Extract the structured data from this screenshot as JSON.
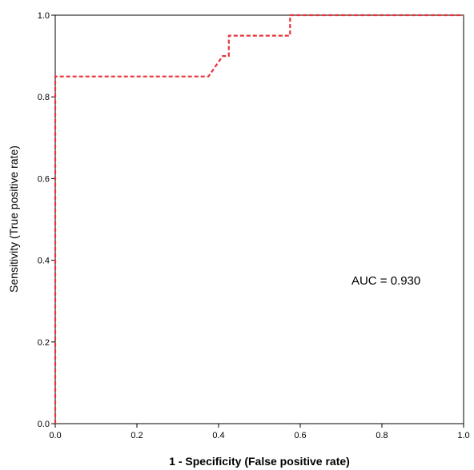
{
  "chart_data": {
    "type": "line",
    "title": "",
    "xlabel": "1 - Specificity  (False positive rate)",
    "ylabel": "Sensitivity (True positive rate)",
    "xlim": [
      0,
      1
    ],
    "ylim": [
      0,
      1
    ],
    "x_ticks": [
      "0.0",
      "0.2",
      "0.4",
      "0.6",
      "0.8",
      "1.0"
    ],
    "y_ticks": [
      "0.0",
      "0.2",
      "0.4",
      "0.6",
      "0.8",
      "1.0"
    ],
    "grid": false,
    "legend": "none",
    "annotations": [
      {
        "text": "AUC = 0.930",
        "x": 0.81,
        "y": 0.35
      }
    ],
    "series": [
      {
        "color": "#e8333a",
        "style": "dashed",
        "x": [
          0.0,
          0.0,
          0.0,
          0.375,
          0.41,
          0.425,
          0.425,
          0.575,
          0.575,
          1.0
        ],
        "y": [
          0.0,
          0.85,
          0.85,
          0.85,
          0.9,
          0.9,
          0.95,
          0.95,
          1.0,
          1.0
        ]
      }
    ]
  }
}
